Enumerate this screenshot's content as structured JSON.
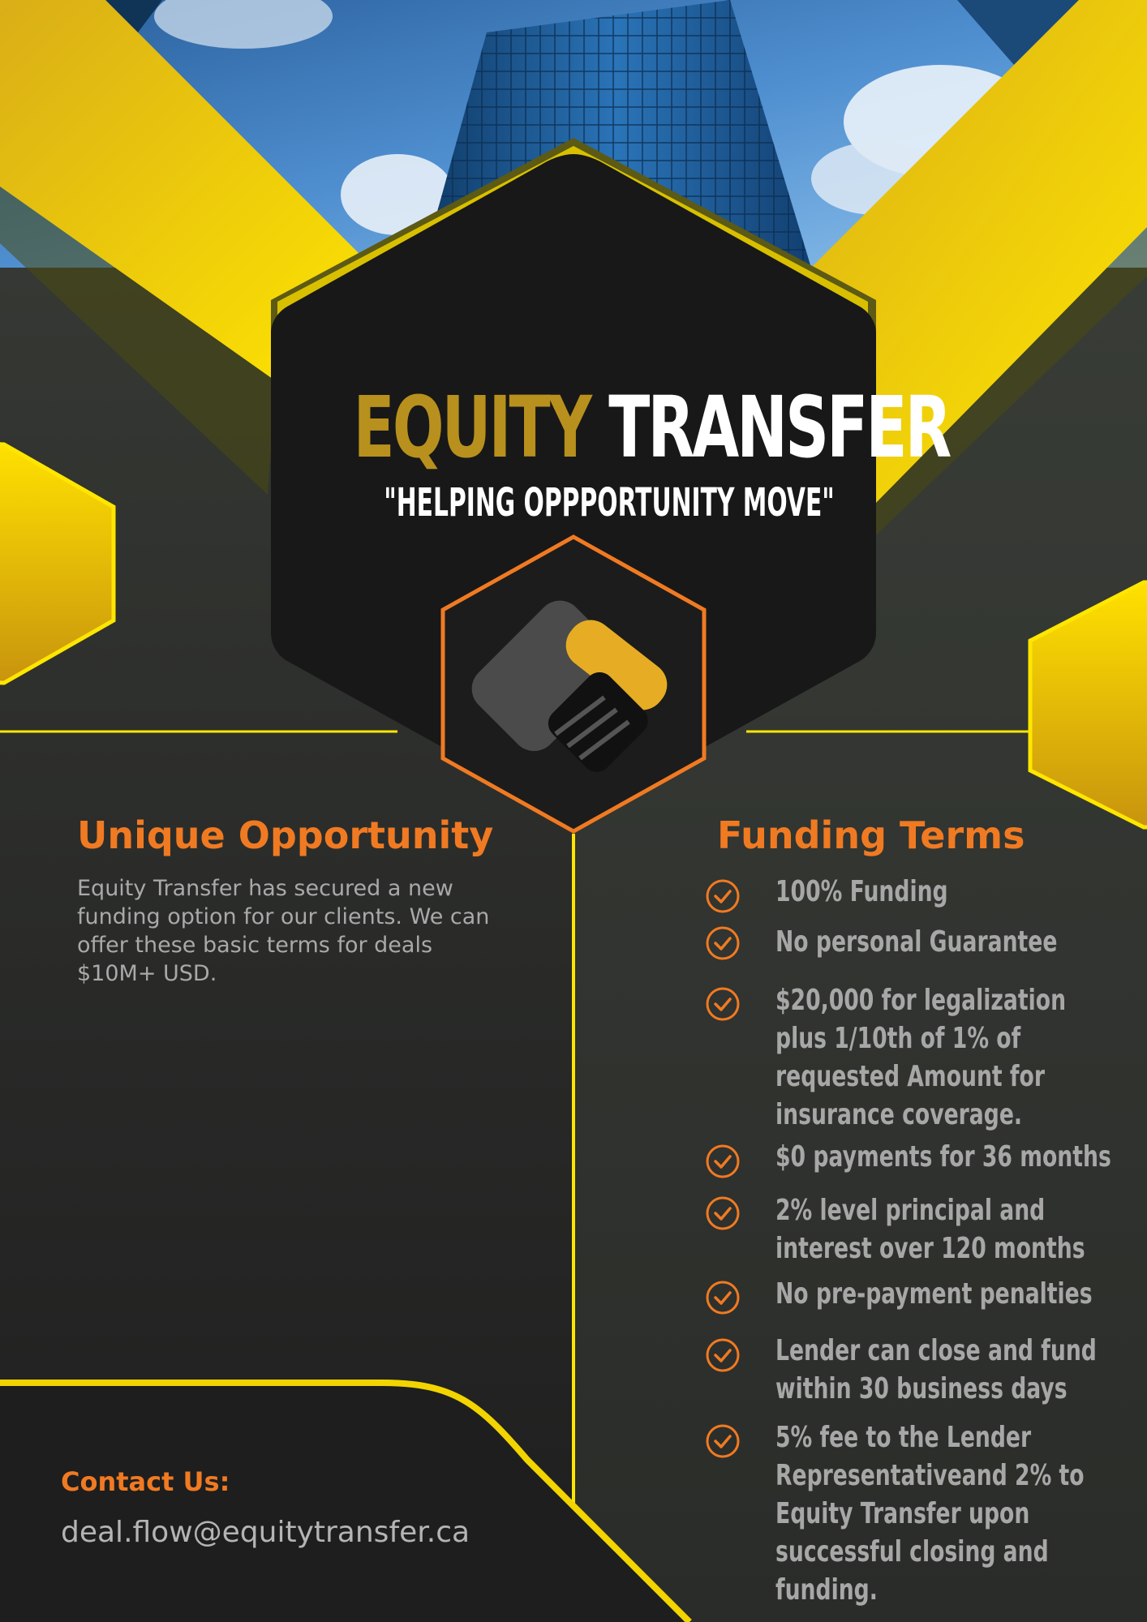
{
  "brand": {
    "title_word1": "EQUITY",
    "title_word2": "TRANSFER",
    "tagline": "\"HELPING OPPPORTUNITY MOVE\""
  },
  "left": {
    "heading": "Unique Opportunity",
    "body": "Equity Transfer has secured a new funding option for our clients. We can offer these  basic  terms  for deals $10M+ USD."
  },
  "contact": {
    "label": "Contact Us:",
    "email": "deal.flow@equitytransfer.ca"
  },
  "terms": {
    "heading": "Funding Terms",
    "items": [
      "100% Funding",
      "No personal Guarantee",
      "$20,000 for legalization plus 1/10th of 1% of requested Amount for insurance coverage.",
      "$0 payments for 36 months",
      "2% level principal and interest over 120 months",
      "No pre-payment penalties",
      "Lender can close and fund within 30 business days",
      "5% fee to the Lender Representativeand 2% to Equity Transfer upon successful closing and funding."
    ]
  },
  "icons": {
    "check": "check-circle-icon",
    "logo": "handshake-icon",
    "photo": "skyscraper-photo"
  },
  "colors": {
    "accent_orange": "#f07a22",
    "yellow": "#fde500",
    "gold": "#b8901d",
    "dark": "#1d1d1d"
  }
}
